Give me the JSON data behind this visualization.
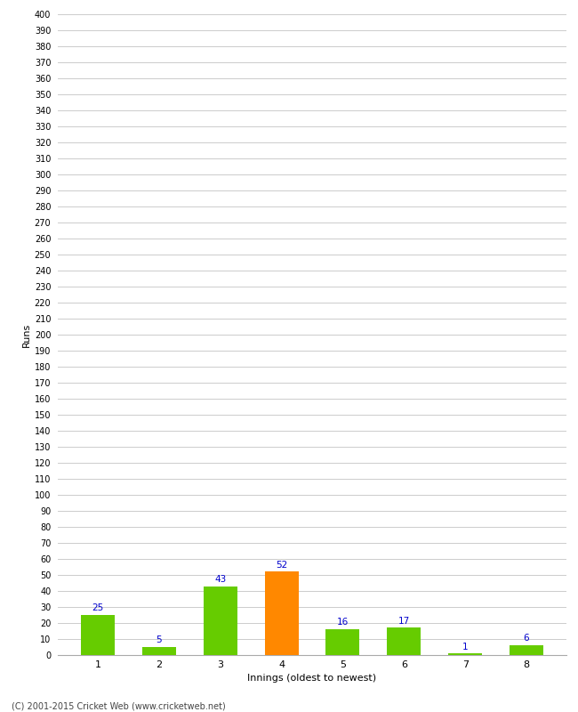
{
  "categories": [
    "1",
    "2",
    "3",
    "4",
    "5",
    "6",
    "7",
    "8"
  ],
  "values": [
    25,
    5,
    43,
    52,
    16,
    17,
    1,
    6
  ],
  "bar_colors": [
    "#66cc00",
    "#66cc00",
    "#66cc00",
    "#ff8800",
    "#66cc00",
    "#66cc00",
    "#66cc00",
    "#66cc00"
  ],
  "label_color": "#0000cc",
  "ylabel": "Runs",
  "xlabel": "Innings (oldest to newest)",
  "ylim": [
    0,
    400
  ],
  "ytick_step": 10,
  "ytick_max": 400,
  "footer": "(C) 2001-2015 Cricket Web (www.cricketweb.net)",
  "background_color": "#ffffff",
  "grid_color": "#cccccc",
  "bar_width": 0.55
}
